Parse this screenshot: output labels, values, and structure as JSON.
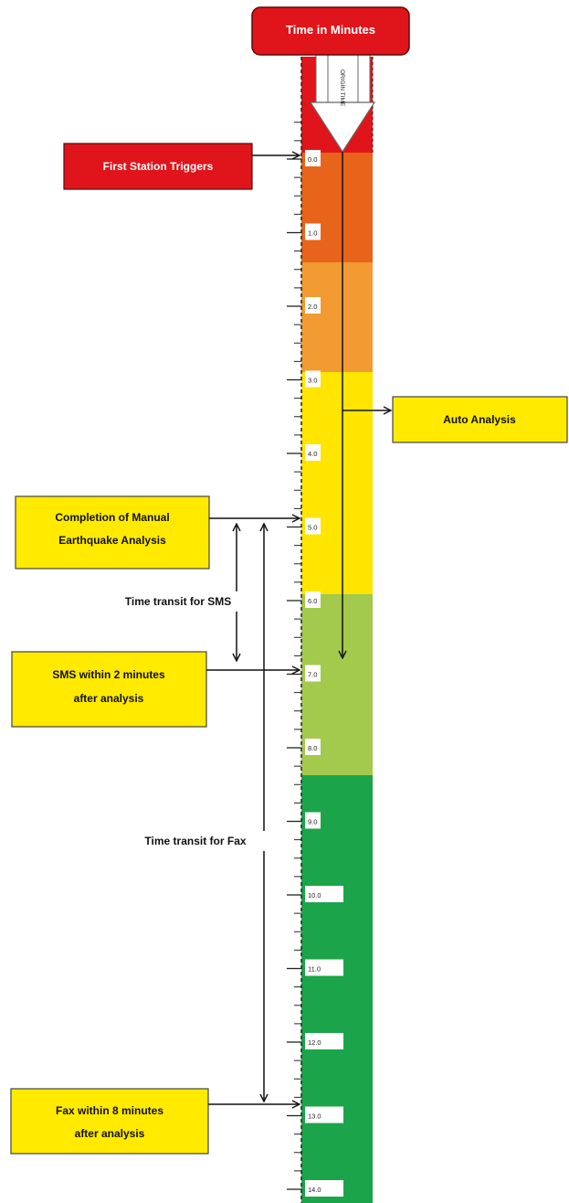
{
  "header": {
    "title": "Time in Minutes",
    "origin_label": "ORIGIN TIME"
  },
  "events": {
    "first_trigger": "First Station Triggers",
    "auto_analysis": "Auto Analysis",
    "manual_analysis_line1": "Completion of Manual",
    "manual_analysis_line2": "Earthquake Analysis",
    "sms_line1": "SMS within 2 minutes",
    "sms_line2": "after analysis",
    "fax_line1": "Fax within 8 minutes",
    "fax_line2": "after analysis"
  },
  "transit": {
    "sms": "Time transit for SMS",
    "fax": "Time transit for Fax"
  },
  "ticks": [
    "0.0",
    "1.0",
    "2.0",
    "3.0",
    "4.0",
    "5.0",
    "6.0",
    "7.0",
    "8.0",
    "9.0",
    "10.0",
    "11.0",
    "12.0",
    "13.0",
    "14.0"
  ],
  "colors": {
    "header_red": "#e0151b",
    "dark_orange": "#e8641a",
    "light_orange": "#f29b33",
    "yellow": "#ffe500",
    "light_green": "#a3c94d",
    "green": "#1ca44a",
    "label_yellow": "#ffea00",
    "label_red": "#e0151b"
  }
}
